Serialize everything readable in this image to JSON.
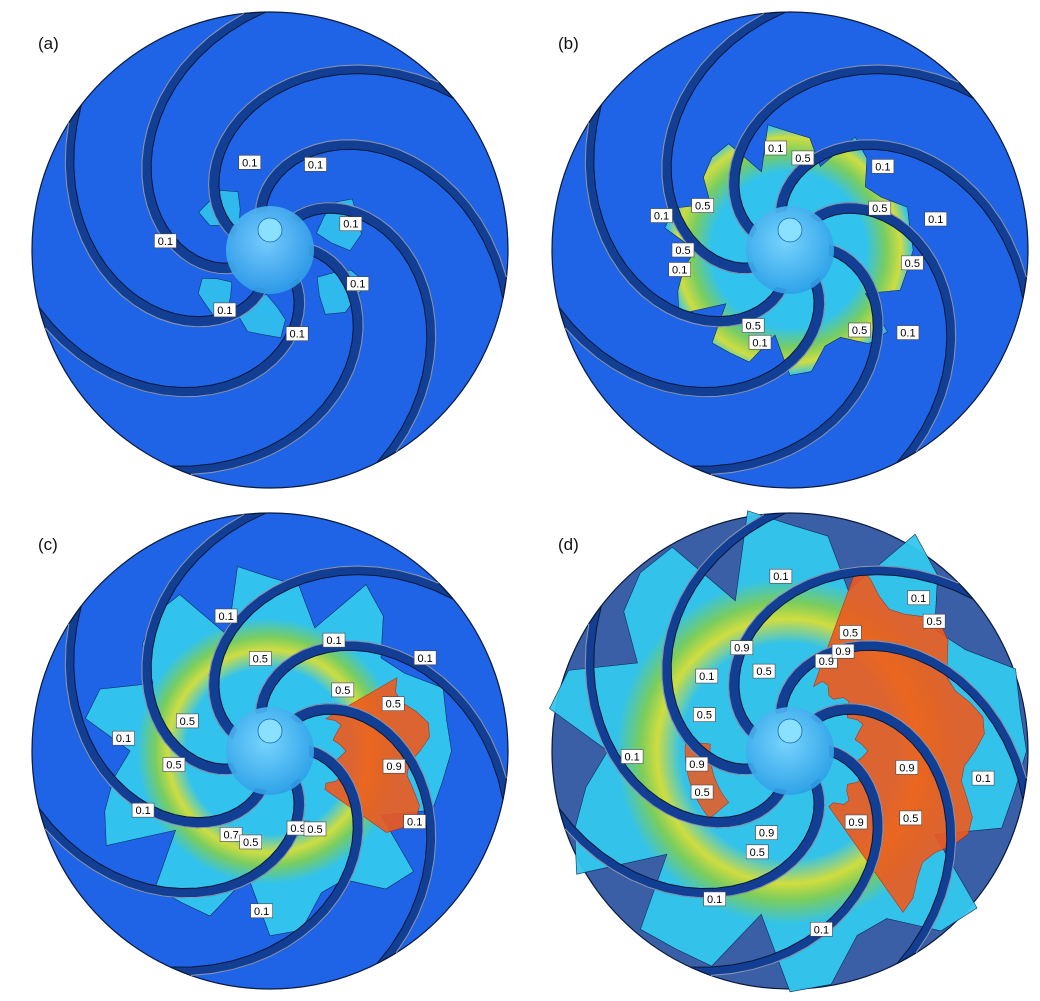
{
  "colors": {
    "casing_bright": "#1f63e6",
    "casing_dark": "#3a5fa6",
    "blade_face": "#123f93",
    "blade_top": "#2a6fe8",
    "hub": "#2f9fe8",
    "vapor_low": "#33c8ee",
    "vapor_mid": "#7ed35a",
    "vapor_mid2": "#d8e43a",
    "vapor_high": "#ee5a1e",
    "label_box": "#ffffff"
  },
  "panels": [
    {
      "id": "a",
      "label": "(a)",
      "casing": "bright",
      "regions": [
        {
          "angle": -20,
          "r": 75,
          "size": 28,
          "level": "low"
        },
        {
          "angle": -140,
          "r": 62,
          "size": 24,
          "level": "low"
        },
        {
          "angle": 140,
          "r": 70,
          "size": 22,
          "level": "low"
        },
        {
          "angle": 95,
          "r": 68,
          "size": 26,
          "level": "low"
        },
        {
          "angle": 30,
          "r": 80,
          "size": 28,
          "level": "low"
        }
      ],
      "labels": [
        {
          "text": "0.1",
          "angle": -103,
          "r": 90
        },
        {
          "text": "0.1",
          "angle": -62,
          "r": 97
        },
        {
          "text": "0.1",
          "angle": -18,
          "r": 85
        },
        {
          "text": "0.1",
          "angle": 185,
          "r": 105
        },
        {
          "text": "0.1",
          "angle": 127,
          "r": 75
        },
        {
          "text": "0.1",
          "angle": 72,
          "r": 88
        },
        {
          "text": "0.1",
          "angle": 21,
          "r": 94
        }
      ]
    },
    {
      "id": "b",
      "label": "(b)",
      "casing": "bright",
      "regions": [],
      "labels": [
        {
          "text": "0.1",
          "angle": -98,
          "r": 103
        },
        {
          "text": "0.5",
          "angle": -82,
          "r": 93
        },
        {
          "text": "0.1",
          "angle": -165,
          "r": 133
        },
        {
          "text": "0.5",
          "angle": -153,
          "r": 98
        },
        {
          "text": "0.1",
          "angle": -42,
          "r": 125
        },
        {
          "text": "0.5",
          "angle": -25,
          "r": 99
        },
        {
          "text": "0.1",
          "angle": -12,
          "r": 149
        },
        {
          "text": "0.5",
          "angle": 6,
          "r": 123
        },
        {
          "text": "0.5",
          "angle": 180,
          "r": 107
        },
        {
          "text": "0.1",
          "angle": 170,
          "r": 112
        },
        {
          "text": "0.5",
          "angle": 116,
          "r": 84
        },
        {
          "text": "0.1",
          "angle": 108,
          "r": 97
        },
        {
          "text": "0.5",
          "angle": 49,
          "r": 106
        },
        {
          "text": "0.1",
          "angle": 35,
          "r": 144
        }
      ]
    },
    {
      "id": "c",
      "label": "(c)",
      "casing": "bright",
      "regions": [],
      "labels": [
        {
          "text": "0.1",
          "angle": -108,
          "r": 142
        },
        {
          "text": "0.1",
          "angle": -60,
          "r": 128
        },
        {
          "text": "0.5",
          "angle": -96,
          "r": 93
        },
        {
          "text": "0.1",
          "angle": -31,
          "r": 181
        },
        {
          "text": "0.5",
          "angle": -40,
          "r": 95
        },
        {
          "text": "0.5",
          "angle": -21,
          "r": 132
        },
        {
          "text": "0.1",
          "angle": -175,
          "r": 147
        },
        {
          "text": "0.5",
          "angle": -160,
          "r": 88
        },
        {
          "text": "0.5",
          "angle": 172,
          "r": 97
        },
        {
          "text": "0.9",
          "angle": 7,
          "r": 125
        },
        {
          "text": "0.1",
          "angle": 155,
          "r": 140
        },
        {
          "text": "0.7",
          "angle": 115,
          "r": 92
        },
        {
          "text": "0.5",
          "angle": 102,
          "r": 93
        },
        {
          "text": "0.9",
          "angle": 70,
          "r": 82
        },
        {
          "text": "0.5",
          "angle": 60,
          "r": 90
        },
        {
          "text": "0.1",
          "angle": 26,
          "r": 161
        },
        {
          "text": "0.1",
          "angle": 93,
          "r": 160
        }
      ]
    },
    {
      "id": "d",
      "label": "(d)",
      "casing": "dark",
      "regions": [],
      "labels": [
        {
          "text": "0.1",
          "angle": -93,
          "r": 175
        },
        {
          "text": "0.1",
          "angle": -50,
          "r": 200
        },
        {
          "text": "0.5",
          "angle": -63,
          "r": 133
        },
        {
          "text": "0.5",
          "angle": -42,
          "r": 194
        },
        {
          "text": "0.1",
          "angle": -138,
          "r": 112
        },
        {
          "text": "0.5",
          "angle": -108,
          "r": 84
        },
        {
          "text": "0.9",
          "angle": -115,
          "r": 114
        },
        {
          "text": "0.9",
          "angle": -68,
          "r": 97
        },
        {
          "text": "0.9",
          "angle": -62,
          "r": 113
        },
        {
          "text": "0.5",
          "angle": -157,
          "r": 93
        },
        {
          "text": "0.9",
          "angle": 8,
          "r": 118
        },
        {
          "text": "0.9",
          "angle": 172,
          "r": 94
        },
        {
          "text": "0.1",
          "angle": 178,
          "r": 158
        },
        {
          "text": "0.5",
          "angle": 155,
          "r": 97
        },
        {
          "text": "0.9",
          "angle": 106,
          "r": 85
        },
        {
          "text": "0.9",
          "angle": 47,
          "r": 97
        },
        {
          "text": "0.5",
          "angle": 29,
          "r": 138
        },
        {
          "text": "0.5",
          "angle": 108,
          "r": 106
        },
        {
          "text": "0.1",
          "angle": 117,
          "r": 166
        },
        {
          "text": "0.1",
          "angle": 8,
          "r": 195
        },
        {
          "text": "0.1",
          "angle": 80,
          "r": 181
        }
      ]
    }
  ]
}
